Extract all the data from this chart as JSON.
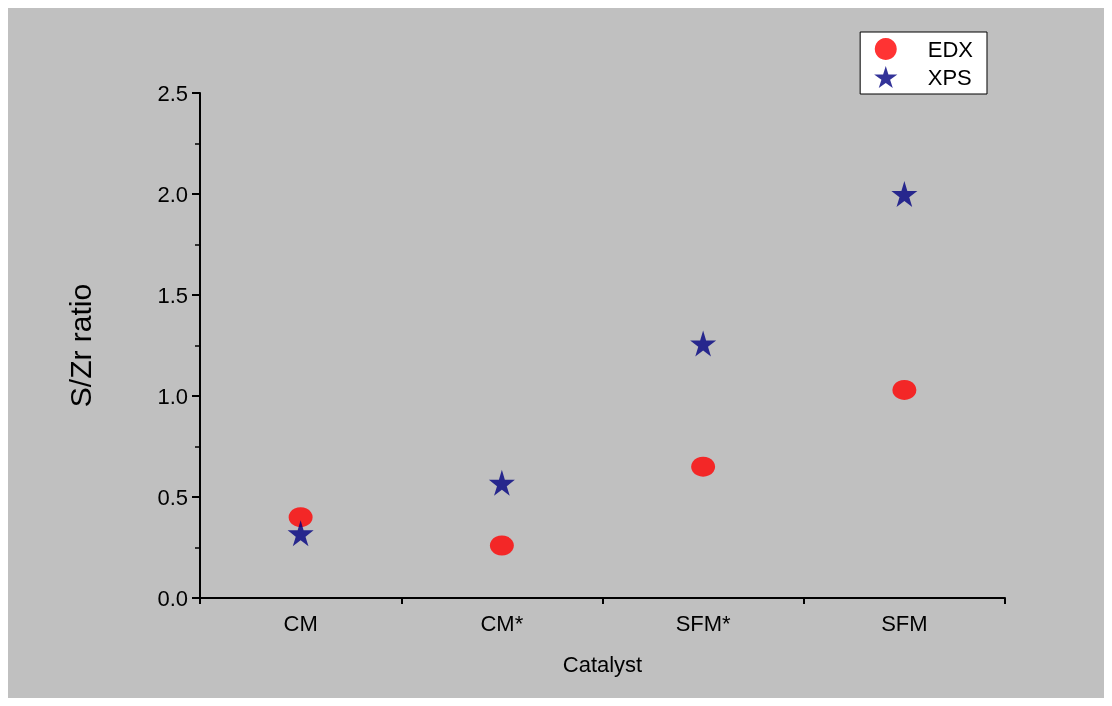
{
  "chart_data": {
    "type": "scatter",
    "xlabel": "Catalyst",
    "ylabel": "S/Zr ratio",
    "categories": [
      "CM",
      "CM*",
      "SFM*",
      "SFM"
    ],
    "series": [
      {
        "name": "EDX",
        "color": "#ff0000",
        "marker": "circle",
        "values": [
          0.4,
          0.26,
          0.65,
          1.03
        ]
      },
      {
        "name": "XPS",
        "color": "#000080",
        "marker": "star",
        "values": [
          0.32,
          0.57,
          1.26,
          2.0
        ]
      }
    ],
    "ylim": [
      0,
      2.5
    ],
    "yticks": [
      {
        "value": 0,
        "label": "0.0"
      },
      {
        "value": 0.5,
        "label": "0.5"
      },
      {
        "value": 1,
        "label": "1.0"
      },
      {
        "value": 1.5,
        "label": "1.5"
      },
      {
        "value": 2,
        "label": "2.0"
      },
      {
        "value": 2.5,
        "label": "2.5"
      }
    ],
    "grid": false,
    "legend": "top right"
  }
}
